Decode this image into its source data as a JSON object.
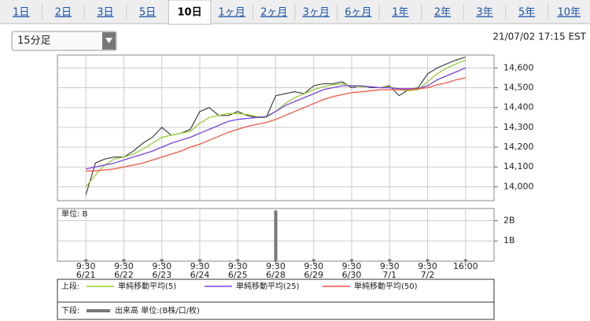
{
  "tabs": [
    "1日",
    "2日",
    "3日",
    "5日",
    "10日",
    "1ヶ月",
    "2ヶ月",
    "3ヶ月",
    "6ヶ月",
    "1年",
    "2年",
    "3年",
    "5年",
    "10年"
  ],
  "selected_tab": 4,
  "interval_select": "15分足",
  "timestamp": "21/07/02 17:15 EST",
  "legend": {
    "upper_label": "上段:",
    "lower_label": "下段:"
  },
  "chart_data": [
    {
      "type": "line",
      "ylim": [
        13930,
        14665
      ],
      "yticks": [
        {
          "value": 14000,
          "label": "14,000"
        },
        {
          "value": 14100,
          "label": "14,100"
        },
        {
          "value": 14200,
          "label": "14,200"
        },
        {
          "value": 14300,
          "label": "14,300"
        },
        {
          "value": 14400,
          "label": "14,400"
        },
        {
          "value": 14500,
          "label": "14,500"
        },
        {
          "value": 14600,
          "label": "14,600"
        }
      ],
      "grid": true,
      "series": [
        {
          "color": "#333333",
          "values": [
            13960,
            14120,
            14140,
            14150,
            14150,
            14180,
            14220,
            14250,
            14300,
            14260,
            14270,
            14290,
            14380,
            14400,
            14360,
            14360,
            14380,
            14360,
            14350,
            14350,
            14460,
            14470,
            14480,
            14470,
            14510,
            14520,
            14520,
            14530,
            14500,
            14510,
            14500,
            14500,
            14510,
            14460,
            14490,
            14500,
            14570,
            14600,
            14620,
            14640,
            14655
          ]
        },
        {
          "name": "単純移動平均(5)",
          "color": "#99cc33",
          "values": [
            14000,
            14060,
            14110,
            14140,
            14150,
            14165,
            14190,
            14220,
            14250,
            14260,
            14270,
            14280,
            14320,
            14350,
            14360,
            14370,
            14370,
            14365,
            14355,
            14350,
            14380,
            14420,
            14450,
            14470,
            14490,
            14505,
            14515,
            14520,
            14510,
            14505,
            14505,
            14500,
            14505,
            14490,
            14485,
            14490,
            14530,
            14570,
            14600,
            14620,
            14640
          ]
        },
        {
          "name": "単純移動平均(25)",
          "color": "#7744dd",
          "values": [
            14090,
            14100,
            14110,
            14120,
            14135,
            14150,
            14165,
            14180,
            14200,
            14220,
            14235,
            14250,
            14270,
            14290,
            14310,
            14330,
            14340,
            14345,
            14350,
            14355,
            14380,
            14410,
            14430,
            14450,
            14470,
            14490,
            14500,
            14510,
            14510,
            14510,
            14505,
            14500,
            14500,
            14495,
            14495,
            14495,
            14510,
            14540,
            14560,
            14580,
            14600
          ]
        },
        {
          "name": "単純移動平均(50)",
          "color": "#ee5544",
          "values": [
            14080,
            14080,
            14085,
            14090,
            14100,
            14110,
            14120,
            14135,
            14150,
            14165,
            14180,
            14200,
            14215,
            14235,
            14255,
            14275,
            14290,
            14305,
            14315,
            14325,
            14340,
            14360,
            14380,
            14400,
            14420,
            14440,
            14455,
            14465,
            14475,
            14480,
            14485,
            14490,
            14490,
            14490,
            14490,
            14495,
            14500,
            14515,
            14525,
            14540,
            14550
          ]
        }
      ]
    },
    {
      "type": "bar",
      "unit_label": "単位: B",
      "ylim": [
        0,
        2.6
      ],
      "yticks": [
        {
          "value": 1,
          "label": "1B"
        },
        {
          "value": 2,
          "label": "2B"
        }
      ],
      "grid": true,
      "categories": [
        "9:30 6/21",
        null,
        null,
        null,
        "9:30 6/22",
        null,
        null,
        null,
        "9:30 6/23",
        null,
        null,
        null,
        "9:30 6/24",
        null,
        null,
        null,
        "9:30 6/25",
        null,
        null,
        null,
        "9:30 6/28",
        null,
        null,
        null,
        "9:30 6/29",
        null,
        null,
        null,
        "9:30 6/30",
        null,
        null,
        null,
        "9:30 7/1",
        null,
        null,
        null,
        "9:30 7/2",
        null,
        null,
        null,
        "16:00"
      ],
      "series": [
        {
          "name": "出来高 単位:(B株/口/枚)",
          "color": "#777777",
          "values": [
            0.1,
            0.02,
            0.02,
            0.02,
            0.1,
            0.02,
            0.02,
            0.02,
            0.1,
            0.02,
            0.02,
            0.02,
            0.1,
            0.02,
            0.02,
            0.02,
            0.1,
            0.02,
            0.02,
            0.02,
            2.5,
            0.02,
            0.02,
            0.02,
            0.1,
            0.02,
            0.02,
            0.02,
            0.1,
            0.02,
            0.02,
            0.02,
            0.1,
            0.02,
            0.02,
            0.02,
            0.1,
            0.02,
            0.02,
            0.02,
            0.1
          ]
        }
      ]
    }
  ]
}
